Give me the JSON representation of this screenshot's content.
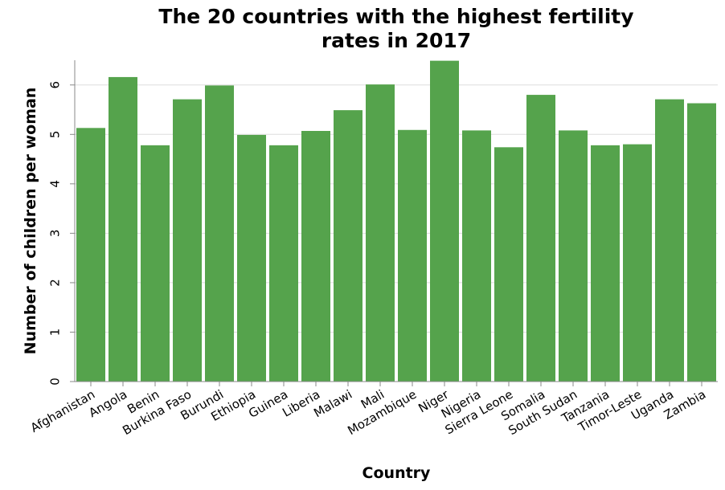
{
  "chart_data": {
    "type": "bar",
    "title_lines": [
      "The 20 countries with the highest fertility",
      "rates in 2017"
    ],
    "xlabel": "Country",
    "ylabel": "Number of children per woman",
    "categories": [
      "Afghanistan",
      "Angola",
      "Benin",
      "Burkina Faso",
      "Burundi",
      "Ethiopia",
      "Guinea",
      "Liberia",
      "Malawi",
      "Mali",
      "Mozambique",
      "Niger",
      "Nigeria",
      "Sierra Leone",
      "Somalia",
      "South Sudan",
      "Tanzania",
      "Timor-Leste",
      "Uganda",
      "Zambia"
    ],
    "values": [
      5.13,
      6.16,
      4.78,
      5.71,
      5.99,
      4.99,
      4.78,
      5.07,
      5.49,
      6.01,
      5.09,
      6.49,
      5.08,
      4.74,
      5.8,
      5.08,
      4.78,
      4.8,
      5.71,
      5.63
    ],
    "yticks": [
      "0",
      "1",
      "2",
      "3",
      "4",
      "5",
      "6"
    ],
    "ylim": [
      0,
      6.5
    ],
    "grid": true,
    "bar_color": "#55a34c",
    "grid_color": "#dddddd",
    "axis_color": "#888888"
  }
}
